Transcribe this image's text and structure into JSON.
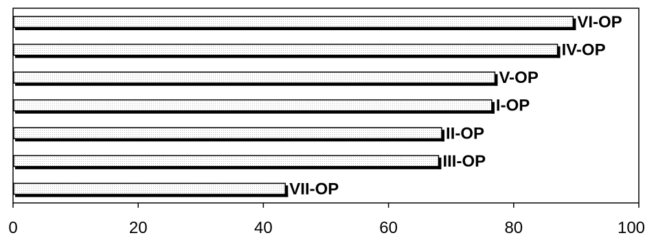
{
  "chart_data": {
    "type": "bar",
    "orientation": "horizontal",
    "categories": [
      "VI-OP",
      "IV-OP",
      "V-OP",
      "I-OP",
      "II-OP",
      "III-OP",
      "VII-OP"
    ],
    "values": [
      89.5,
      87,
      77,
      76.5,
      68.5,
      68,
      43.5
    ],
    "xlim": [
      0,
      100
    ],
    "xticks": [
      0,
      20,
      40,
      60,
      80,
      100
    ],
    "title": "",
    "xlabel": "",
    "ylabel": "",
    "grid": false,
    "legend": "none",
    "colors": {
      "bar_fill": "#ffffff",
      "bar_shadow": "#000000",
      "axis": "#000000"
    }
  }
}
